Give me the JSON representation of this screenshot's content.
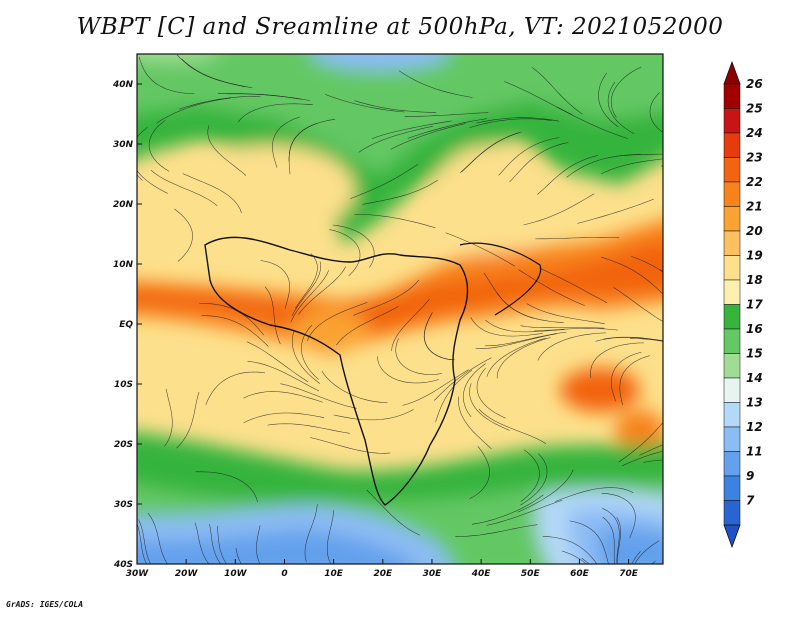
{
  "title": "WBPT [C] and Sreamline at 500hPa, VT: 2021052000",
  "footer": "GrADS: IGES/COLA",
  "map": {
    "projection": "latlon",
    "lon_range": [
      -30,
      77
    ],
    "lat_range": [
      -40,
      45
    ],
    "lon_ticks": [
      {
        "value": -30,
        "label": "30W"
      },
      {
        "value": -20,
        "label": "20W"
      },
      {
        "value": -10,
        "label": "10W"
      },
      {
        "value": 0,
        "label": "0"
      },
      {
        "value": 10,
        "label": "10E"
      },
      {
        "value": 20,
        "label": "20E"
      },
      {
        "value": 30,
        "label": "30E"
      },
      {
        "value": 40,
        "label": "40E"
      },
      {
        "value": 50,
        "label": "50E"
      },
      {
        "value": 60,
        "label": "60E"
      },
      {
        "value": 70,
        "label": "70E"
      }
    ],
    "lat_ticks": [
      {
        "value": 40,
        "label": "40N"
      },
      {
        "value": 30,
        "label": "30N"
      },
      {
        "value": 20,
        "label": "20N"
      },
      {
        "value": 10,
        "label": "10N"
      },
      {
        "value": 0,
        "label": "EQ"
      },
      {
        "value": -10,
        "label": "10S"
      },
      {
        "value": -20,
        "label": "20S"
      },
      {
        "value": -30,
        "label": "30S"
      },
      {
        "value": -40,
        "label": "40S"
      }
    ],
    "shaded_field": "WBPT [C]",
    "overlay": "streamlines"
  },
  "colorbar": {
    "orientation": "vertical",
    "placement": "right",
    "levels": [
      {
        "label": "26",
        "color": "#a00000"
      },
      {
        "label": "25",
        "color": "#c81414"
      },
      {
        "label": "24",
        "color": "#e63c0c"
      },
      {
        "label": "23",
        "color": "#f26410"
      },
      {
        "label": "22",
        "color": "#f8821c"
      },
      {
        "label": "21",
        "color": "#faa232"
      },
      {
        "label": "20",
        "color": "#fcc060"
      },
      {
        "label": "19",
        "color": "#fde08c"
      },
      {
        "label": "18",
        "color": "#fcefb0"
      },
      {
        "label": "17",
        "color": "#36b43c"
      },
      {
        "label": "16",
        "color": "#64c864"
      },
      {
        "label": "15",
        "color": "#a0dc96"
      },
      {
        "label": "14",
        "color": "#e6f5f0"
      },
      {
        "label": "13",
        "color": "#b4d8f8"
      },
      {
        "label": "12",
        "color": "#8cbcf4"
      },
      {
        "label": "11",
        "color": "#64a0ec"
      },
      {
        "label": "9",
        "color": "#3c82e0"
      },
      {
        "label": "7",
        "color": "#2864d2"
      }
    ],
    "extend_top_color": "#8c0000",
    "extend_bottom_color": "#1e50c8"
  }
}
